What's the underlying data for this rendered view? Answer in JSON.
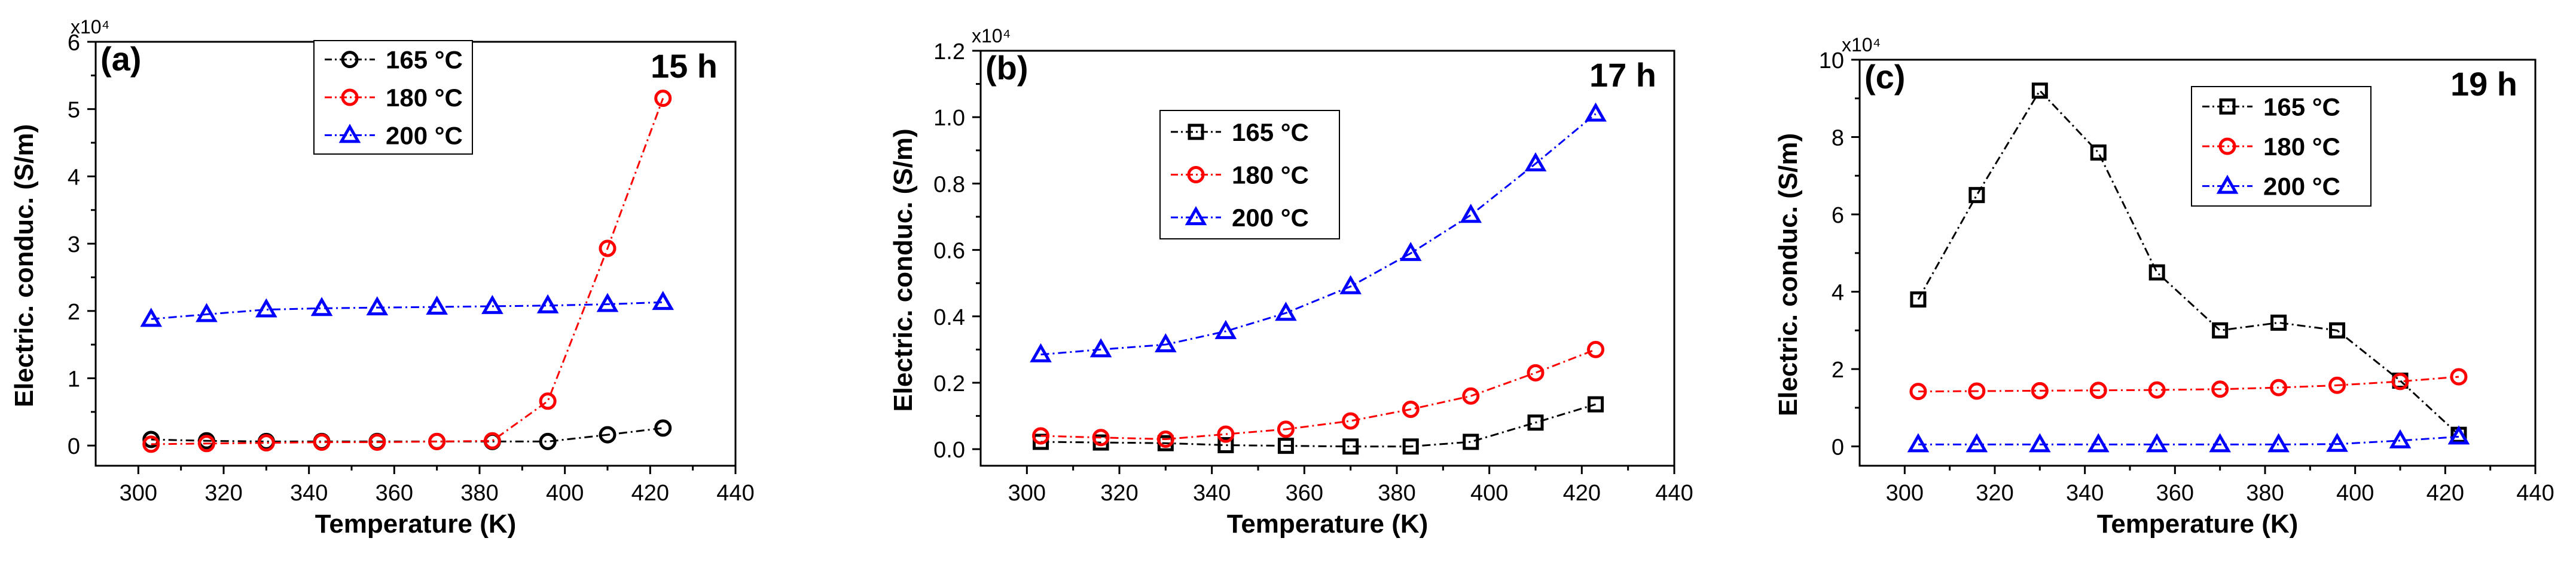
{
  "chart_data": [
    {
      "type": "line",
      "panel_label": "(a)",
      "time_label": "15 h",
      "multiplier": "x10⁴",
      "xlabel": "Temperature (K)",
      "ylabel": "Electric. conduc. (S/m)",
      "xlim": [
        290,
        440
      ],
      "ylim": [
        -0.3,
        6
      ],
      "xticks": [
        300,
        320,
        340,
        360,
        380,
        400,
        420,
        440
      ],
      "yticks": [
        0,
        1,
        2,
        3,
        4,
        5,
        6
      ],
      "ytick_labels": [
        "0",
        "1",
        "2",
        "3",
        "4",
        "5",
        "6"
      ],
      "legend_position": "top-center",
      "x": [
        303,
        316,
        330,
        343,
        356,
        370,
        383,
        396,
        410,
        423
      ],
      "series": [
        {
          "name": "165 °C",
          "marker": "circle",
          "color": "#000000",
          "values": [
            0.09,
            0.07,
            0.06,
            0.06,
            0.06,
            0.06,
            0.06,
            0.06,
            0.16,
            0.26
          ]
        },
        {
          "name": "180 °C",
          "marker": "circle",
          "color": "#ff0000",
          "values": [
            0.02,
            0.03,
            0.04,
            0.05,
            0.05,
            0.06,
            0.07,
            0.66,
            2.93,
            5.16
          ]
        },
        {
          "name": "200 °C",
          "marker": "triangle",
          "color": "#0000ff",
          "values": [
            1.88,
            1.95,
            2.02,
            2.04,
            2.05,
            2.06,
            2.07,
            2.08,
            2.1,
            2.13
          ]
        }
      ]
    },
    {
      "type": "line",
      "panel_label": "(b)",
      "time_label": "17 h",
      "multiplier": "x10⁴",
      "xlabel": "Temperature (K)",
      "ylabel": "Electric. conduc. (S/m)",
      "xlim": [
        290,
        440
      ],
      "ylim": [
        -0.05,
        1.2
      ],
      "xticks": [
        300,
        320,
        340,
        360,
        380,
        400,
        420,
        440
      ],
      "yticks": [
        0,
        0.2,
        0.4,
        0.6,
        0.8,
        1.0,
        1.2
      ],
      "ytick_labels": [
        "0.0",
        "0.2",
        "0.4",
        "0.6",
        "0.8",
        "1.0",
        "1.2"
      ],
      "legend_position": "top-left",
      "x": [
        303,
        316,
        330,
        343,
        356,
        370,
        383,
        396,
        410,
        423
      ],
      "series": [
        {
          "name": "165 °C",
          "marker": "square",
          "color": "#000000",
          "values": [
            0.022,
            0.02,
            0.018,
            0.012,
            0.01,
            0.008,
            0.008,
            0.022,
            0.08,
            0.135
          ]
        },
        {
          "name": "180 °C",
          "marker": "circle",
          "color": "#ff0000",
          "values": [
            0.04,
            0.035,
            0.03,
            0.045,
            0.06,
            0.085,
            0.12,
            0.16,
            0.23,
            0.3
          ]
        },
        {
          "name": "200 °C",
          "marker": "triangle",
          "color": "#0000ff",
          "values": [
            0.285,
            0.3,
            0.315,
            0.355,
            0.41,
            0.49,
            0.59,
            0.705,
            0.86,
            1.01
          ]
        }
      ]
    },
    {
      "type": "line",
      "panel_label": "(c)",
      "time_label": "19 h",
      "multiplier": "x10⁴",
      "xlabel": "Temperature (K)",
      "ylabel": "Electric. conduc. (S/m)",
      "xlim": [
        290,
        440
      ],
      "ylim": [
        -0.5,
        10
      ],
      "xticks": [
        300,
        320,
        340,
        360,
        380,
        400,
        420,
        440
      ],
      "yticks": [
        0,
        2,
        4,
        6,
        8,
        10
      ],
      "ytick_labels": [
        "0",
        "2",
        "4",
        "6",
        "8",
        "10"
      ],
      "legend_position": "top-center",
      "x": [
        303,
        316,
        330,
        343,
        356,
        370,
        383,
        396,
        410,
        423
      ],
      "series": [
        {
          "name": "165 °C",
          "marker": "square",
          "color": "#000000",
          "values": [
            3.8,
            6.5,
            9.2,
            7.6,
            4.5,
            3.0,
            3.2,
            3.0,
            1.7,
            0.3
          ]
        },
        {
          "name": "180 °C",
          "marker": "circle",
          "color": "#ff0000",
          "values": [
            1.42,
            1.43,
            1.44,
            1.45,
            1.46,
            1.48,
            1.52,
            1.58,
            1.68,
            1.8
          ]
        },
        {
          "name": "200 °C",
          "marker": "triangle",
          "color": "#0000ff",
          "values": [
            0.05,
            0.05,
            0.05,
            0.05,
            0.05,
            0.05,
            0.05,
            0.06,
            0.15,
            0.25
          ]
        }
      ]
    }
  ]
}
